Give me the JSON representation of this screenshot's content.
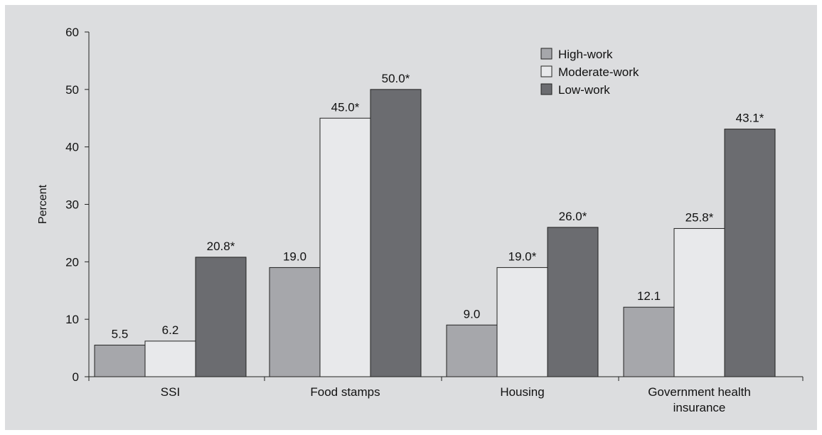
{
  "chart_data": {
    "type": "bar",
    "title": "",
    "xlabel": "",
    "ylabel": "Percent",
    "ylim": [
      0,
      60
    ],
    "yticks": [
      0,
      10,
      20,
      30,
      40,
      50,
      60
    ],
    "grid": false,
    "legend_position": "top-right",
    "categories": [
      [
        "SSI"
      ],
      [
        "Food stamps"
      ],
      [
        "Housing"
      ],
      [
        "Government health",
        "insurance"
      ]
    ],
    "series": [
      {
        "name": "High-work",
        "color": "#a6a7ab",
        "values": [
          5.5,
          19.0,
          9.0,
          12.1
        ],
        "labels": [
          "5.5",
          "19.0",
          "9.0",
          "12.1"
        ]
      },
      {
        "name": "Moderate-work",
        "color": "#e8e9eb",
        "values": [
          6.2,
          45.0,
          19.0,
          25.8
        ],
        "labels": [
          "6.2",
          "45.0*",
          "19.0*",
          "25.8*"
        ]
      },
      {
        "name": "Low-work",
        "color": "#6b6c70",
        "values": [
          20.8,
          50.0,
          26.0,
          43.1
        ],
        "labels": [
          "20.8*",
          "50.0*",
          "26.0*",
          "43.1*"
        ]
      }
    ]
  }
}
